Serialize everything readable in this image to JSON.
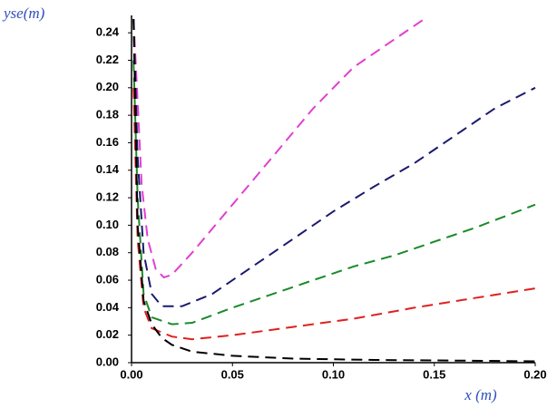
{
  "chart_data": {
    "type": "line",
    "xlabel": "x (m)",
    "ylabel": "yse(m)",
    "xlim": [
      0,
      0.2
    ],
    "ylim": [
      0,
      0.25
    ],
    "xticks": [
      {
        "value": 0,
        "label": "0.00"
      },
      {
        "value": 0.05,
        "label": "0.05"
      },
      {
        "value": 0.1,
        "label": "0.10"
      },
      {
        "value": 0.15,
        "label": "0.15"
      },
      {
        "value": 0.2,
        "label": "0.20"
      }
    ],
    "yticks": [
      {
        "value": 0,
        "label": "0.00"
      },
      {
        "value": 0.02,
        "label": "0.02"
      },
      {
        "value": 0.04,
        "label": "0.04"
      },
      {
        "value": 0.06,
        "label": "0.06"
      },
      {
        "value": 0.08,
        "label": "0.08"
      },
      {
        "value": 0.1,
        "label": "0.10"
      },
      {
        "value": 0.12,
        "label": "0.12"
      },
      {
        "value": 0.14,
        "label": "0.14"
      },
      {
        "value": 0.16,
        "label": "0.16"
      },
      {
        "value": 0.18,
        "label": "0.18"
      },
      {
        "value": 0.2,
        "label": "0.20"
      },
      {
        "value": 0.22,
        "label": "0.22"
      },
      {
        "value": 0.24,
        "label": "0.24"
      }
    ],
    "series": [
      {
        "color": "#e040d0",
        "x": [
          0.001,
          0.003,
          0.005,
          0.008,
          0.012,
          0.016,
          0.02,
          0.03,
          0.05,
          0.07,
          0.09,
          0.11,
          0.13,
          0.145
        ],
        "values": [
          0.25,
          0.19,
          0.13,
          0.09,
          0.068,
          0.062,
          0.064,
          0.08,
          0.115,
          0.15,
          0.185,
          0.215,
          0.235,
          0.25
        ]
      },
      {
        "color": "#1a1a6e",
        "x": [
          0.001,
          0.003,
          0.006,
          0.01,
          0.015,
          0.025,
          0.04,
          0.06,
          0.08,
          0.1,
          0.12,
          0.14,
          0.16,
          0.18,
          0.2
        ],
        "values": [
          0.25,
          0.15,
          0.08,
          0.05,
          0.041,
          0.041,
          0.05,
          0.07,
          0.09,
          0.11,
          0.128,
          0.145,
          0.165,
          0.185,
          0.2
        ]
      },
      {
        "color": "#1a8a2a",
        "x": [
          0.001,
          0.003,
          0.006,
          0.01,
          0.02,
          0.03,
          0.05,
          0.07,
          0.09,
          0.11,
          0.13,
          0.15,
          0.17,
          0.2
        ],
        "values": [
          0.22,
          0.12,
          0.05,
          0.033,
          0.028,
          0.029,
          0.04,
          0.05,
          0.06,
          0.07,
          0.078,
          0.088,
          0.098,
          0.115
        ]
      },
      {
        "color": "#e02020",
        "x": [
          0.001,
          0.003,
          0.006,
          0.01,
          0.02,
          0.03,
          0.05,
          0.08,
          0.11,
          0.14,
          0.17,
          0.2
        ],
        "values": [
          0.2,
          0.09,
          0.04,
          0.025,
          0.019,
          0.017,
          0.02,
          0.026,
          0.032,
          0.04,
          0.047,
          0.054
        ]
      },
      {
        "color": "#000000",
        "x": [
          0.001,
          0.003,
          0.006,
          0.01,
          0.015,
          0.02,
          0.03,
          0.05,
          0.08,
          0.12,
          0.16,
          0.2
        ],
        "values": [
          0.25,
          0.1,
          0.045,
          0.028,
          0.018,
          0.013,
          0.008,
          0.005,
          0.003,
          0.002,
          0.0015,
          0.001
        ]
      }
    ]
  }
}
